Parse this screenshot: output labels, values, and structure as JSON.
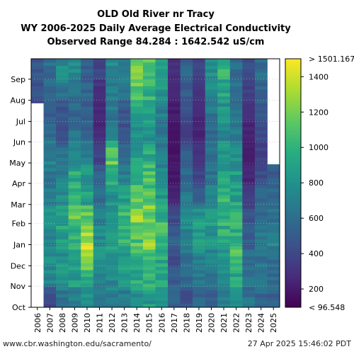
{
  "chart_data": {
    "type": "heatmap",
    "title_lines": [
      "OLD Old River nr Tracy",
      "WY 2006-2025 Daily Average Electrical Conductivity",
      "Observed Range 84.284 : 1642.542 uS/cm"
    ],
    "x_categories": [
      "2006",
      "2007",
      "2008",
      "2009",
      "2010",
      "2011",
      "2012",
      "2013",
      "2014",
      "2015",
      "2016",
      "2017",
      "2018",
      "2019",
      "2020",
      "2021",
      "2022",
      "2023",
      "2024",
      "2025"
    ],
    "y_months": [
      "Oct",
      "Nov",
      "Dec",
      "Jan",
      "Feb",
      "Mar",
      "Apr",
      "May",
      "Jun",
      "Jul",
      "Aug",
      "Sep"
    ],
    "colorbar": {
      "colormap": "viridis",
      "min": 96.548,
      "max": 1501.167,
      "ticks": [
        200,
        400,
        600,
        800,
        1000,
        1200,
        1400
      ],
      "tick_labels": [
        "200",
        "400",
        "600",
        "800",
        "1000",
        "1200",
        "1400"
      ],
      "min_label": "< 96.548",
      "max_label": "> 1501.167"
    },
    "monthly_ec": {
      "2006": [
        520,
        480,
        560,
        620,
        700,
        640,
        560,
        520,
        430,
        420,
        460,
        470
      ],
      "2007": [
        420,
        720,
        760,
        700,
        820,
        720,
        640,
        700,
        560,
        520,
        560,
        600
      ],
      "2008": [
        600,
        840,
        780,
        900,
        880,
        760,
        680,
        620,
        440,
        460,
        620,
        760
      ],
      "2009": [
        680,
        880,
        880,
        1000,
        1120,
        1000,
        940,
        760,
        640,
        560,
        640,
        760
      ],
      "2010": [
        760,
        1000,
        1250,
        1380,
        1180,
        880,
        820,
        700,
        540,
        520,
        560,
        520
      ],
      "2011": [
        620,
        700,
        840,
        760,
        720,
        620,
        520,
        380,
        280,
        240,
        280,
        380
      ],
      "2012": [
        700,
        760,
        860,
        920,
        860,
        780,
        900,
        1120,
        760,
        640,
        700,
        760
      ],
      "2013": [
        680,
        820,
        900,
        1000,
        1040,
        880,
        700,
        560,
        440,
        480,
        620,
        700
      ],
      "2014": [
        800,
        940,
        1000,
        1100,
        1280,
        1100,
        1000,
        880,
        760,
        880,
        1100,
        1160
      ],
      "2015": [
        860,
        1000,
        1100,
        1300,
        1200,
        1120,
        1050,
        940,
        800,
        860,
        1000,
        1080
      ],
      "2016": [
        760,
        900,
        940,
        1050,
        1000,
        860,
        760,
        680,
        640,
        700,
        800,
        860
      ],
      "2017": [
        540,
        500,
        440,
        520,
        400,
        240,
        190,
        170,
        160,
        200,
        240,
        280
      ],
      "2018": [
        440,
        560,
        620,
        720,
        760,
        660,
        560,
        480,
        380,
        420,
        500,
        540
      ],
      "2019": [
        560,
        640,
        720,
        900,
        820,
        560,
        380,
        300,
        240,
        250,
        300,
        360
      ],
      "2020": [
        520,
        600,
        700,
        800,
        880,
        760,
        640,
        600,
        560,
        640,
        760,
        800
      ],
      "2021": [
        660,
        760,
        840,
        960,
        1000,
        980,
        900,
        820,
        760,
        800,
        900,
        960
      ],
      "2022": [
        820,
        900,
        1100,
        1000,
        940,
        900,
        860,
        760,
        660,
        640,
        640,
        600
      ],
      "2023": [
        620,
        640,
        580,
        520,
        440,
        340,
        240,
        200,
        220,
        300,
        360,
        420
      ],
      "2024": [
        560,
        600,
        640,
        680,
        600,
        560,
        420,
        360,
        400,
        480,
        520,
        600
      ],
      "2025": [
        520,
        580,
        620,
        700,
        620,
        560,
        520,
        null,
        null,
        null,
        null,
        null
      ]
    },
    "missing": {
      "2006_until_day": 300,
      "2025_after_day": 207
    },
    "xlabel": "",
    "ylabel": "",
    "grid": true,
    "colorbar_position": "right"
  },
  "footer": {
    "left": "www.cbr.washington.edu/sacramento/",
    "right": "27 Apr 2025 15:46:02 PDT"
  }
}
